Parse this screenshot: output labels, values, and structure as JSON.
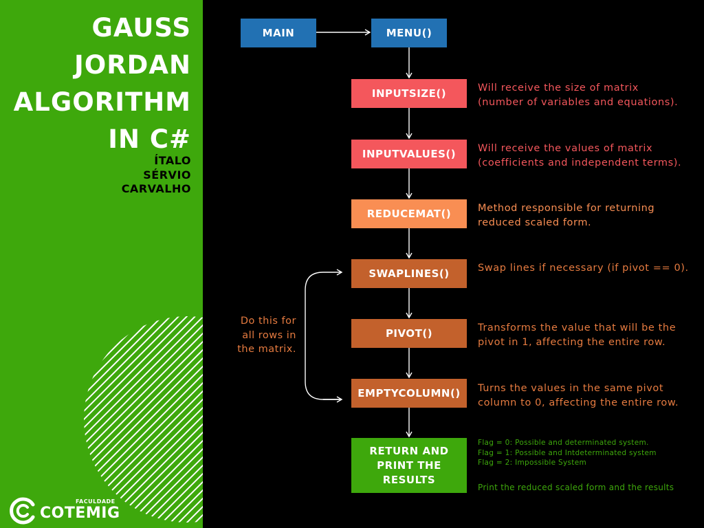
{
  "left_panel": {
    "title_lines": [
      "GAUSS",
      "JORDAN",
      "ALGORITHM",
      "IN C#"
    ],
    "author_lines": [
      "ÍTALO",
      "SÉRVIO",
      "CARVALHO"
    ],
    "logo": {
      "small_text": "FACULDADE",
      "name": "COTEMIG"
    }
  },
  "colors": {
    "panel_green": "#3ea80c",
    "blue_box": "#2271b3",
    "red_box": "#f4575c",
    "orange_box": "#f98e53",
    "brown_box": "#c3612c",
    "green_box": "#3ea80c",
    "red_text": "#f4575c",
    "orange_text": "#f98e53",
    "brown_text": "#e67b40",
    "green_text": "#3ea80c"
  },
  "flow": {
    "main": "MAIN",
    "menu": "MENU()",
    "input_size": "INPUTSIZE()",
    "input_values": "INPUTVALUES()",
    "reduce_mat": "REDUCEMAT()",
    "swap_lines": "SWAPLINES()",
    "pivot": "PIVOT()",
    "empty_column": "EMPTYCOLUMN()",
    "return_lines": [
      "RETURN AND",
      "PRINT THE",
      "RESULTS"
    ]
  },
  "loop_note_lines": [
    "Do this for",
    "all rows in",
    "the matrix."
  ],
  "descriptions": {
    "input_size": [
      "Will receive the size of matrix",
      "(number of variables and equations)."
    ],
    "input_values": [
      "Will receive the values of matrix",
      "(coefficients and independent terms)."
    ],
    "reduce_mat": [
      "Method responsible for returning",
      "reduced scaled form."
    ],
    "swap_lines": [
      "Swap lines if necessary (if pivot == 0)."
    ],
    "pivot": [
      "Transforms the value that will be the",
      "pivot in 1, affecting the entire row."
    ],
    "empty_column": [
      "Turns the values in the same pivot",
      "column to 0, affecting the entire row."
    ],
    "flags": [
      "Flag = 0: Possible and determinated system.",
      "Flag = 1: Possible and Intdeterminated system",
      "Flag = 2: Impossible System"
    ],
    "print_results": "Print the reduced scaled form and the results"
  }
}
